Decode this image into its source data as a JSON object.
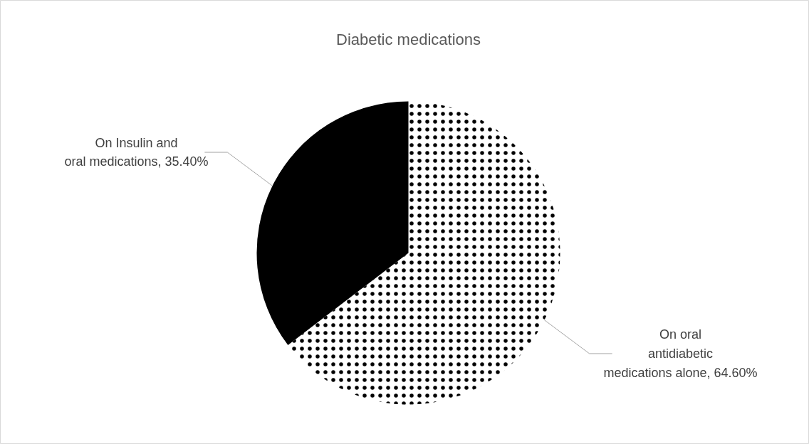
{
  "chart_data": {
    "type": "pie",
    "title": "Diabetic medications",
    "categories": [
      "On oral antidiabetic medications alone",
      "On Insulin and oral medications"
    ],
    "values": [
      64.6,
      35.4
    ],
    "colors": [
      "#ffffff",
      "#000000"
    ],
    "value_labels": [
      "64.60%",
      "35.40%"
    ]
  }
}
